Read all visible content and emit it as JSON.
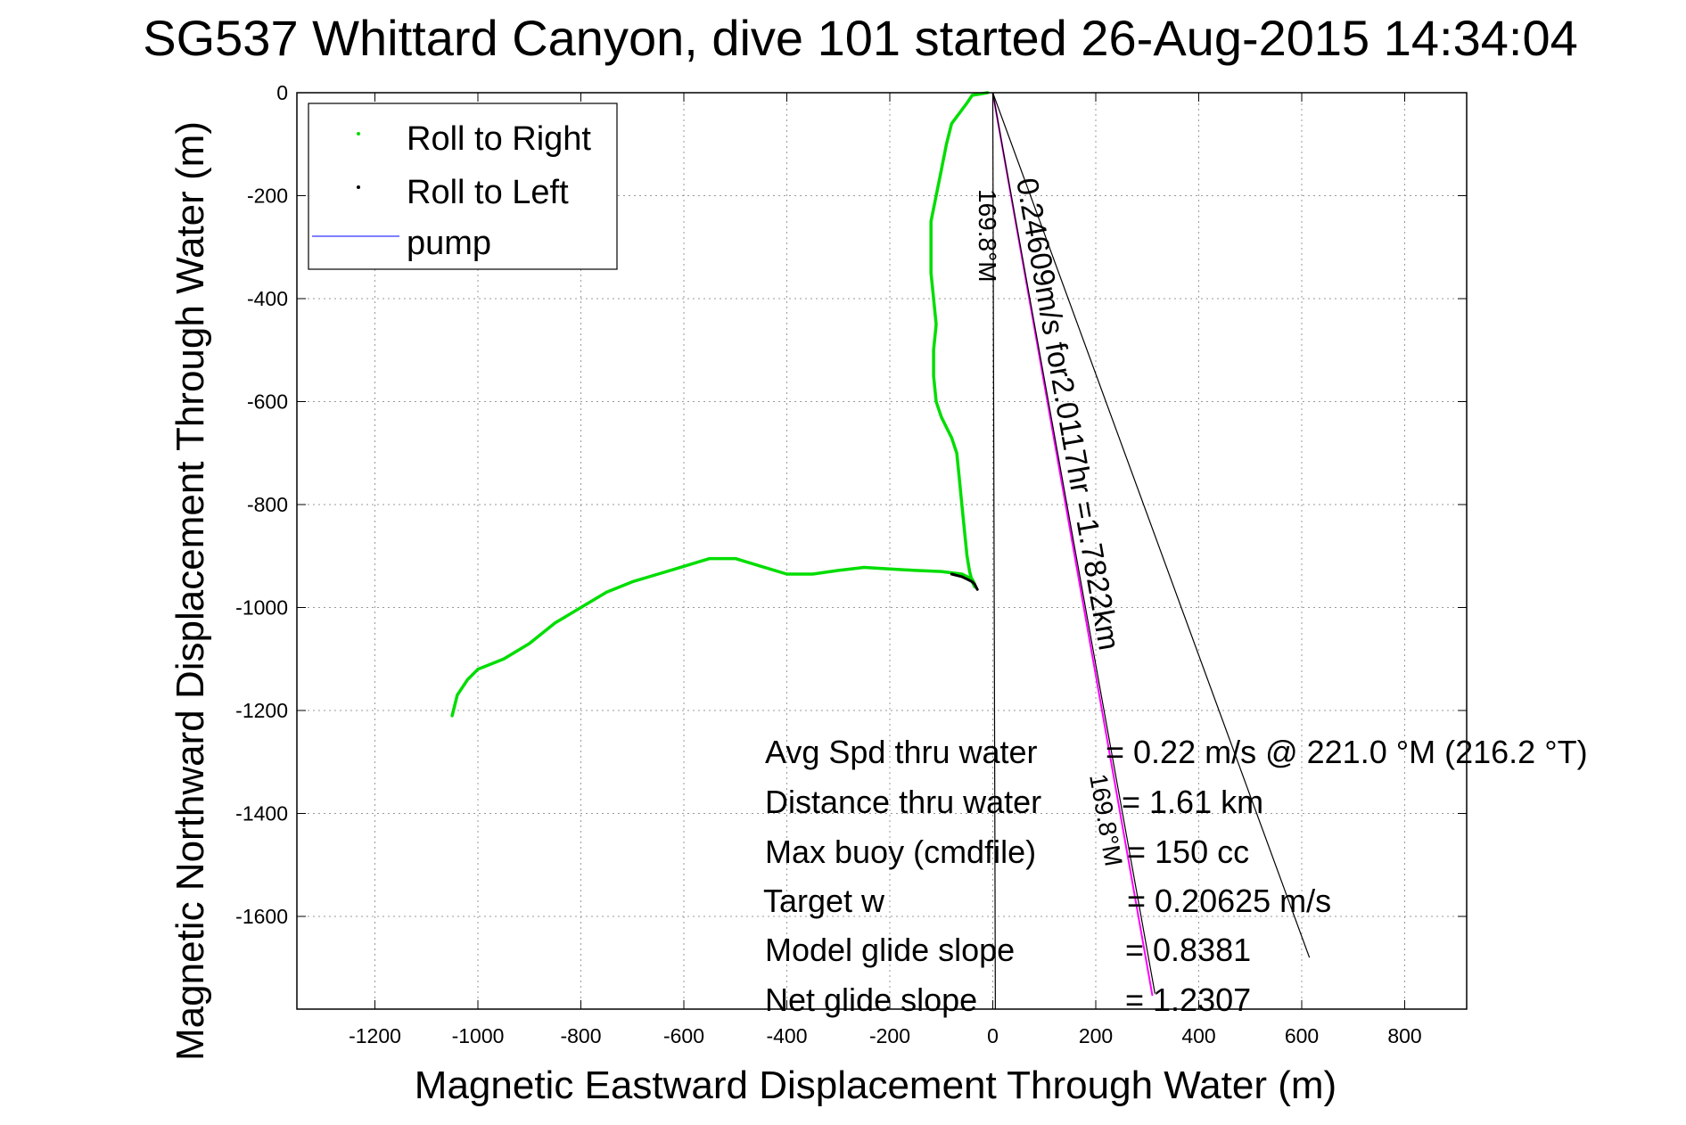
{
  "chart_data": {
    "type": "line",
    "title": "SG537 Whittard Canyon, dive 101 started 26-Aug-2015 14:34:04",
    "xlabel": "Magnetic Eastward Displacement Through Water (m)",
    "ylabel": "Magnetic Northward Displacement Through Water (m)",
    "xlim": [
      -1400,
      900
    ],
    "ylim": [
      -1780,
      0
    ],
    "xticks": [
      -1200,
      -1000,
      -800,
      -600,
      -400,
      -200,
      0,
      200,
      400,
      600,
      800
    ],
    "yticks": [
      0,
      -200,
      -400,
      -600,
      -800,
      -1000,
      -1200,
      -1400,
      -1600
    ],
    "grid": true,
    "legend_position": "top-left",
    "legend": [
      {
        "label": "Roll to Right",
        "marker": "dot",
        "color": "#00dd00"
      },
      {
        "label": "Roll to Left",
        "marker": "dot",
        "color": "#000000"
      },
      {
        "label": "pump",
        "marker": "line",
        "color": "#5555ff"
      }
    ],
    "series": [
      {
        "name": "Roll to Right",
        "color": "#00dd00",
        "x": [
          -10,
          -40,
          -50,
          -80,
          -90,
          -100,
          -110,
          -120,
          -120,
          -120,
          -115,
          -110,
          -115,
          -115,
          -110,
          -100,
          -90,
          -80,
          -70,
          -65,
          -60,
          -55,
          -50,
          -45,
          -40,
          -35,
          -35,
          -40,
          -60,
          -100,
          -150,
          -200,
          -250,
          -300,
          -350,
          -400,
          -450,
          -500,
          -550,
          -600,
          -650,
          -700,
          -750,
          -800,
          -850,
          -900,
          -950,
          -1000,
          -1020,
          -1040,
          -1050
        ],
        "y": [
          0,
          -5,
          -20,
          -60,
          -100,
          -150,
          -200,
          -250,
          -300,
          -350,
          -400,
          -450,
          -500,
          -550,
          -600,
          -630,
          -650,
          -670,
          -700,
          -750,
          -800,
          -850,
          -900,
          -930,
          -950,
          -960,
          -955,
          -945,
          -935,
          -930,
          -928,
          -925,
          -922,
          -928,
          -935,
          -935,
          -920,
          -905,
          -905,
          -920,
          -935,
          -950,
          -970,
          -1000,
          -1030,
          -1070,
          -1100,
          -1120,
          -1140,
          -1170,
          -1210
        ]
      },
      {
        "name": "Roll to Left",
        "color": "#000000",
        "x": [
          -80,
          -60,
          -50,
          -40,
          -35,
          -30
        ],
        "y": [
          -935,
          -940,
          -945,
          -950,
          -955,
          -965
        ]
      }
    ],
    "reference_lines": [
      {
        "label": "0.24609m/s for2.0117hr =1.7822km",
        "x": [
          0,
          310
        ],
        "y": [
          0,
          -1754
        ]
      },
      {
        "label": "169.8°M",
        "x": [
          0,
          315
        ],
        "y": [
          0,
          -1750
        ]
      },
      {
        "x": [
          0,
          615
        ],
        "y": [
          0,
          -1680
        ]
      },
      {
        "x": [
          0,
          5
        ],
        "y": [
          0,
          -1780
        ]
      }
    ],
    "annotations": {
      "vertical_label": "169.8°M",
      "rotated_label": "0.24609m/s for2.0117hr =1.7822km",
      "lower_label": "169.8°M"
    },
    "stats": [
      {
        "label": "Avg Spd thru water",
        "value": "=  0.22 m/s @ 221.0 °M (216.2 °T)"
      },
      {
        "label": "Distance thru water",
        "value": "=  1.61 km"
      },
      {
        "label": "Max buoy (cmdfile)",
        "value": "= 150 cc"
      },
      {
        "label": "Target w",
        "value": "= 0.20625 m/s"
      },
      {
        "label": "Model glide slope",
        "value": "= 0.8381"
      },
      {
        "label": "Net glide slope",
        "value": "= 1.2307"
      }
    ]
  }
}
